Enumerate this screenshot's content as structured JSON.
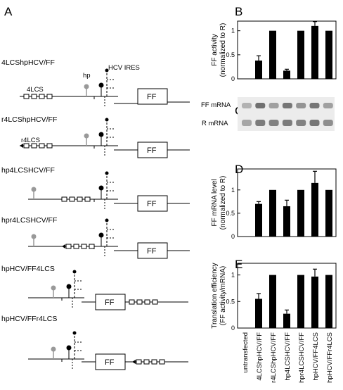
{
  "panel_letters": [
    "A",
    "B",
    "C",
    "D",
    "E"
  ],
  "constructs": [
    {
      "name": "4LCShpHCV/FF",
      "lcs_label": "4LCS",
      "hp_label": "hp",
      "ires_label": "HCV IRES",
      "reporter": "FF"
    },
    {
      "name": "r4LCShpHCV/FF",
      "lcs_label": "r4LCS",
      "reporter": "FF"
    },
    {
      "name": "hp4LCSHCV/FF",
      "reporter": "FF"
    },
    {
      "name": "hpr4LCSHCV/FF",
      "reporter": "FF"
    },
    {
      "name": "hpHCV/FF4LCS",
      "reporter": "FF"
    },
    {
      "name": "hpHCV/FFr4LCS",
      "reporter": "FF"
    }
  ],
  "gel": {
    "rows": [
      "FF mRNA",
      "R mRNA"
    ],
    "ff_intensity": [
      0.35,
      0.9,
      0.5,
      0.85,
      0.6,
      0.85,
      0.5
    ],
    "r_intensity": [
      0.45,
      0.8,
      0.75,
      0.8,
      0.75,
      0.85,
      0.65
    ]
  },
  "x_categories": [
    "untransfected",
    "4LCShpHCV/FF",
    "r4LCShpHCV/FF",
    "hp4LCSHCV/FF",
    "hpr4LCSHCV/FF",
    "hpHCV/FF4LCS",
    "hpHCV/FFr4LCS"
  ],
  "chart_data": [
    {
      "panel": "B",
      "type": "bar",
      "categories": [
        "untransfected",
        "4LCShpHCV/FF",
        "r4LCShpHCV/FF",
        "hp4LCSHCV/FF",
        "hpr4LCSHCV/FF",
        "hpHCV/FF4LCS",
        "hpHCV/FFr4LCS"
      ],
      "values": [
        0,
        0.38,
        1.0,
        0.17,
        1.0,
        1.1,
        1.0
      ],
      "errors": [
        0,
        0.1,
        0,
        0.03,
        0,
        0.09,
        0
      ],
      "ylabel": "FF activity\n(normalized to R)",
      "yticks": [
        0,
        0.5,
        1
      ],
      "ylim": [
        0,
        1.2
      ]
    },
    {
      "panel": "D",
      "type": "bar",
      "categories": [
        "untransfected",
        "4LCShpHCV/FF",
        "r4LCShpHCV/FF",
        "hp4LCSHCV/FF",
        "hpr4LCSHCV/FF",
        "hpHCV/FF4LCS",
        "hpHCV/FFr4LCS"
      ],
      "values": [
        0,
        0.7,
        1.0,
        0.65,
        1.0,
        1.15,
        1.0
      ],
      "errors": [
        0,
        0.05,
        0,
        0.13,
        0,
        0.25,
        0
      ],
      "ylabel": "FF mRNA level\n(normalized to R)",
      "yticks": [
        0,
        0.5,
        1
      ],
      "ylim": [
        0,
        1.45
      ]
    },
    {
      "panel": "E",
      "type": "bar",
      "categories": [
        "untransfected",
        "4LCShpHCV/FF",
        "r4LCShpHCV/FF",
        "hp4LCSHCV/FF",
        "hpr4LCSHCV/FF",
        "hpHCV/FF4LCS",
        "hpHCV/FFr4LCS"
      ],
      "values": [
        0,
        0.55,
        1.0,
        0.27,
        1.0,
        0.97,
        1.0
      ],
      "errors": [
        0,
        0.1,
        0,
        0.07,
        0,
        0.14,
        0
      ],
      "ylabel": "Translation efficiency\n(FF activity/mRNA)",
      "yticks": [
        0,
        0.5,
        1
      ],
      "ylim": [
        0,
        1.22
      ]
    }
  ]
}
